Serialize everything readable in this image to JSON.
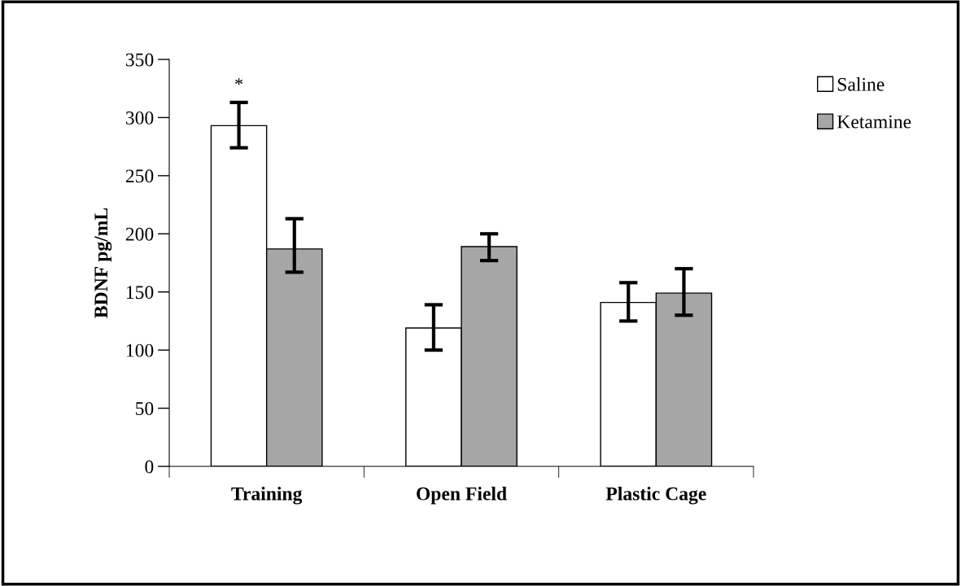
{
  "chart_data": {
    "type": "bar",
    "ylabel": "BDNF pg/mL",
    "categories": [
      "Training",
      "Open Field",
      "Plastic Cage"
    ],
    "series": [
      {
        "name": "Saline",
        "color": "#ffffff",
        "values": [
          293,
          119,
          141
        ],
        "errors": [
          [
            274,
            313
          ],
          [
            100,
            139
          ],
          [
            125,
            158
          ]
        ]
      },
      {
        "name": "Ketamine",
        "color": "#a6a6a6",
        "values": [
          187,
          189,
          149
        ],
        "errors": [
          [
            167,
            213
          ],
          [
            177,
            200
          ],
          [
            130,
            170
          ]
        ]
      }
    ],
    "ylim": [
      0,
      350
    ],
    "yticks": [
      0,
      50,
      100,
      150,
      200,
      250,
      300,
      350
    ],
    "grid": false,
    "legend": "top right",
    "annotations": [
      "*"
    ]
  }
}
